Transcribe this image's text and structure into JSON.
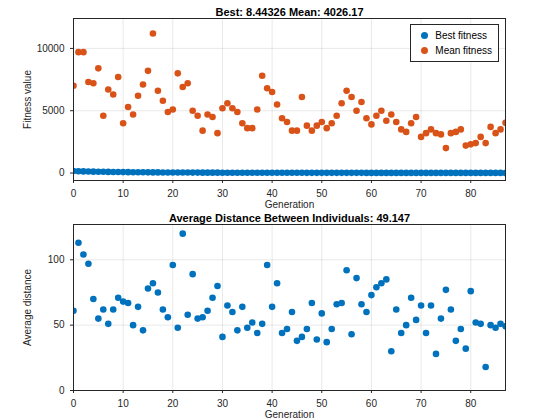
{
  "chart_data": [
    {
      "type": "scatter",
      "title": "Best: 8.44326 Mean: 4026.17",
      "x_label": "Generation",
      "y_label": "Fitness value",
      "x": [
        0,
        1,
        2,
        3,
        4,
        5,
        6,
        7,
        8,
        9,
        10,
        11,
        12,
        13,
        14,
        15,
        16,
        17,
        18,
        19,
        20,
        21,
        22,
        23,
        24,
        25,
        26,
        27,
        28,
        29,
        30,
        31,
        32,
        33,
        34,
        35,
        36,
        37,
        38,
        39,
        40,
        41,
        42,
        43,
        44,
        45,
        46,
        47,
        48,
        49,
        50,
        51,
        52,
        53,
        54,
        55,
        56,
        57,
        58,
        59,
        60,
        61,
        62,
        63,
        64,
        65,
        66,
        67,
        68,
        69,
        70,
        71,
        72,
        73,
        74,
        75,
        76,
        77,
        78,
        79,
        80,
        81,
        82,
        83,
        84,
        85,
        86,
        87
      ],
      "series": [
        {
          "name": "Best fitness",
          "color": "#0072BD",
          "values": [
            160,
            140,
            131,
            120,
            112,
            105,
            98,
            92,
            86,
            80,
            75,
            70,
            66,
            62,
            58,
            55,
            52,
            49,
            46,
            44,
            42,
            40,
            38,
            36,
            34.5,
            33,
            31.5,
            30,
            29,
            28,
            27,
            26,
            25,
            24.2,
            23.4,
            22.6,
            21.9,
            21.2,
            20.5,
            19.9,
            19.3,
            18.7,
            18.1,
            17.6,
            17.1,
            16.6,
            16.1,
            15.7,
            15.3,
            14.9,
            14.5,
            14.1,
            13.8,
            13.5,
            13.2,
            12.9,
            12.6,
            12.3,
            12,
            11.8,
            11.6,
            11.4,
            11.2,
            11,
            10.8,
            10.6,
            10.4,
            10.2,
            10.05,
            9.9,
            9.75,
            9.6,
            9.5,
            9.4,
            9.3,
            9.2,
            9.1,
            9,
            8.92,
            8.85,
            8.78,
            8.72,
            8.66,
            8.61,
            8.56,
            8.52,
            8.48,
            8.44326
          ]
        },
        {
          "name": "Mean fitness",
          "color": "#D95319",
          "values": [
            7000,
            9700,
            9700,
            7300,
            7200,
            8400,
            4600,
            6700,
            6300,
            7700,
            4000,
            5300,
            4700,
            6200,
            7100,
            8200,
            11200,
            6600,
            5800,
            4900,
            5100,
            8000,
            6900,
            7200,
            5000,
            4600,
            3400,
            4700,
            4500,
            3200,
            5200,
            5600,
            5200,
            4900,
            4000,
            3600,
            3600,
            5100,
            7800,
            6800,
            6500,
            5500,
            4400,
            4100,
            3400,
            3400,
            6100,
            3800,
            3400,
            3800,
            4100,
            3600,
            4000,
            4600,
            5600,
            6600,
            6100,
            5000,
            5700,
            4400,
            3900,
            4600,
            5000,
            4200,
            4700,
            4100,
            3500,
            3300,
            4000,
            4500,
            2900,
            3200,
            3500,
            3200,
            3100,
            2000,
            3200,
            3300,
            3500,
            2200,
            2300,
            2400,
            2900,
            2400,
            3700,
            3200,
            3500,
            4026.17
          ]
        }
      ],
      "xlim": [
        0,
        87
      ],
      "xticks": [
        0,
        10,
        20,
        30,
        40,
        50,
        60,
        70,
        80
      ],
      "ylim": [
        -600,
        12400
      ],
      "yticks": [
        0,
        5000,
        10000
      ],
      "grid": true,
      "legend": "northeast",
      "marker": "circle"
    },
    {
      "type": "scatter",
      "title": "Average Distance Between Individuals: 49.147",
      "x_label": "Generation",
      "y_label": "Average distance",
      "x": [
        0,
        1,
        2,
        3,
        4,
        5,
        6,
        7,
        8,
        9,
        10,
        11,
        12,
        13,
        14,
        15,
        16,
        17,
        18,
        19,
        20,
        21,
        22,
        23,
        24,
        25,
        26,
        27,
        28,
        29,
        30,
        31,
        32,
        33,
        34,
        35,
        36,
        37,
        38,
        39,
        40,
        41,
        42,
        43,
        44,
        45,
        46,
        47,
        48,
        49,
        50,
        51,
        52,
        53,
        54,
        55,
        56,
        57,
        58,
        59,
        60,
        61,
        62,
        63,
        64,
        65,
        66,
        67,
        68,
        69,
        70,
        71,
        72,
        73,
        74,
        75,
        76,
        77,
        78,
        79,
        80,
        81,
        82,
        83,
        84,
        85,
        86,
        87
      ],
      "series": [
        {
          "name": "Average distance",
          "color": "#0072BD",
          "values": [
            61,
            113,
            104,
            97,
            70,
            55,
            62,
            51,
            62,
            71,
            68,
            67,
            50,
            64,
            46,
            78,
            82,
            75,
            62,
            56,
            96,
            48,
            120,
            58,
            89,
            55,
            56,
            61,
            71,
            80,
            41,
            65,
            60,
            46,
            64,
            48,
            52,
            44,
            51,
            96,
            64,
            82,
            44,
            47,
            60,
            38,
            41,
            47,
            67,
            39,
            59,
            37,
            47,
            66,
            67,
            92,
            43,
            86,
            66,
            60,
            73,
            79,
            82,
            85,
            30,
            62,
            44,
            50,
            71,
            54,
            65,
            44,
            65,
            28,
            55,
            77,
            62,
            38,
            47,
            32,
            76,
            52,
            51,
            18,
            50,
            48,
            51,
            49.147
          ]
        }
      ],
      "xlim": [
        0,
        87
      ],
      "xticks": [
        0,
        10,
        20,
        30,
        40,
        50,
        60,
        70,
        80
      ],
      "ylim": [
        0,
        127
      ],
      "yticks": [
        0,
        50,
        100
      ],
      "grid": true,
      "marker": "circle"
    }
  ]
}
